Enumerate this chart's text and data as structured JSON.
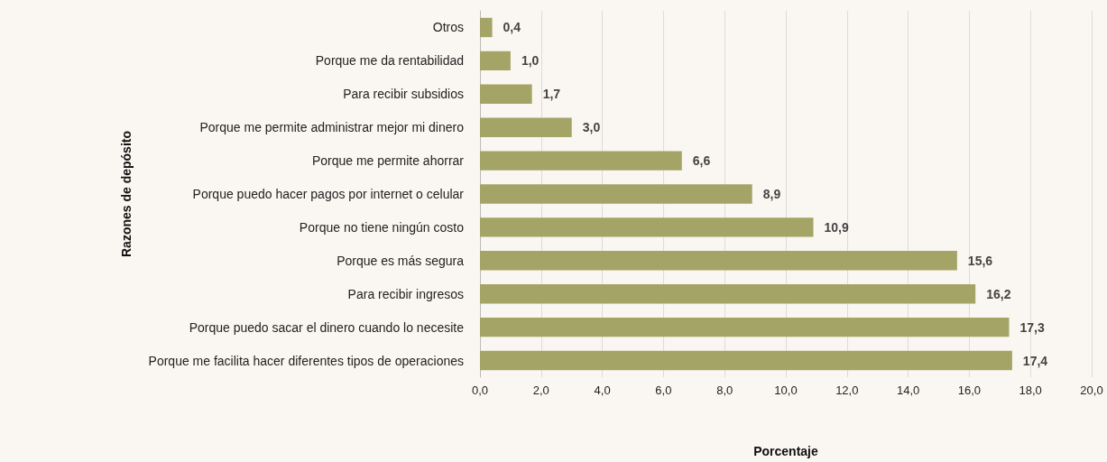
{
  "chart_data": {
    "type": "bar",
    "orientation": "horizontal",
    "xlabel": "Porcentaje",
    "ylabel": "Razones de depósito",
    "categories": [
      "Otros",
      "Porque me da rentabilidad",
      "Para recibir subsidios",
      "Porque me permite administrar mejor mi dinero",
      "Porque me permite ahorrar",
      "Porque puedo hacer pagos por internet o celular",
      "Porque no tiene ningún costo",
      "Porque es más segura",
      "Para recibir ingresos",
      "Porque puedo sacar el dinero cuando lo necesite",
      "Porque me facilita hacer diferentes tipos de operaciones"
    ],
    "values": [
      0.4,
      1.0,
      1.7,
      3.0,
      6.6,
      8.9,
      10.9,
      15.6,
      16.2,
      17.3,
      17.4
    ],
    "value_labels": [
      "0,4",
      "1,0",
      "1,7",
      "3,0",
      "6,6",
      "8,9",
      "10,9",
      "15,6",
      "16,2",
      "17,3",
      "17,4"
    ],
    "color": "#a3a465",
    "xlim": [
      0,
      20
    ],
    "xticks": [
      {
        "value": 0,
        "label": "0,0"
      },
      {
        "value": 2,
        "label": "2,0"
      },
      {
        "value": 4,
        "label": "4,0"
      },
      {
        "value": 6,
        "label": "6,0"
      },
      {
        "value": 8,
        "label": "8,0"
      },
      {
        "value": 10,
        "label": "10,0"
      },
      {
        "value": 12,
        "label": "12,0"
      },
      {
        "value": 14,
        "label": "14,0"
      },
      {
        "value": 16,
        "label": "16,0"
      },
      {
        "value": 18,
        "label": "18,0"
      },
      {
        "value": 20,
        "label": "20,0"
      }
    ],
    "grid": "x"
  }
}
